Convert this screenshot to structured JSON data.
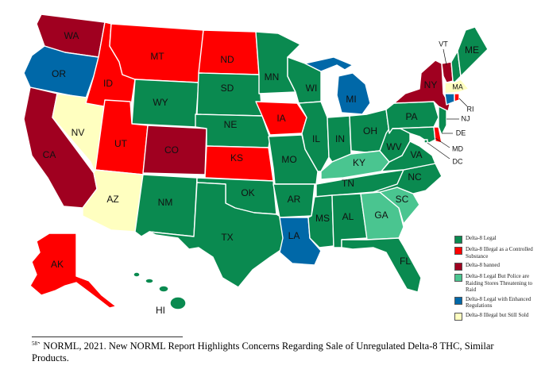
{
  "colors": {
    "legal": "#0a8a50",
    "controlled": "#ff0000",
    "banned": "#a00020",
    "police": "#4ac590",
    "enhanced": "#0068a8",
    "illegal_sold": "#ffffc0"
  },
  "legend": [
    {
      "key": "legal",
      "label": "Delta-8 Legal"
    },
    {
      "key": "controlled",
      "label": "Delta-8 Illegal as a Controlled Substance"
    },
    {
      "key": "banned",
      "label": "Delta-8 banned"
    },
    {
      "key": "police",
      "label": "Delta-8 Legal But Police are Raiding Stores Threatening to Raid"
    },
    {
      "key": "enhanced",
      "label": "Delta-8 Legal with Enhanced Regulations"
    },
    {
      "key": "illegal_sold",
      "label": "Delta-8 Illegal but Still Sold"
    }
  ],
  "states": {
    "WA": "banned",
    "OR": "enhanced",
    "CA": "banned",
    "ID": "controlled",
    "NV": "illegal_sold",
    "MT": "controlled",
    "WY": "legal",
    "UT": "controlled",
    "AZ": "illegal_sold",
    "CO": "banned",
    "NM": "legal",
    "ND": "controlled",
    "SD": "legal",
    "NE": "legal",
    "KS": "controlled",
    "OK": "legal",
    "TX": "legal",
    "MN": "legal",
    "IA": "controlled",
    "MO": "legal",
    "AR": "legal",
    "LA": "enhanced",
    "WI": "legal",
    "IL": "legal",
    "MI": "enhanced",
    "IN": "legal",
    "OH": "legal",
    "KY": "police",
    "TN": "legal",
    "MS": "legal",
    "AL": "legal",
    "GA": "police",
    "FL": "legal",
    "SC": "police",
    "NC": "legal",
    "VA": "legal",
    "WV": "legal",
    "PA": "legal",
    "NY": "banned",
    "VT": "banned",
    "NH": "legal",
    "ME": "legal",
    "MA": "illegal_sold",
    "RI": "controlled",
    "CT": "enhanced",
    "NJ": "legal",
    "DE": "controlled",
    "MD": "legal",
    "DC": "legal",
    "AK": "controlled",
    "HI": "legal"
  },
  "footnote": {
    "number": "58",
    "text": "` NORML, 2021. New NORML Report Highlights Concerns Regarding Sale of Unregulated Delta-8 THC, Similar Products."
  }
}
